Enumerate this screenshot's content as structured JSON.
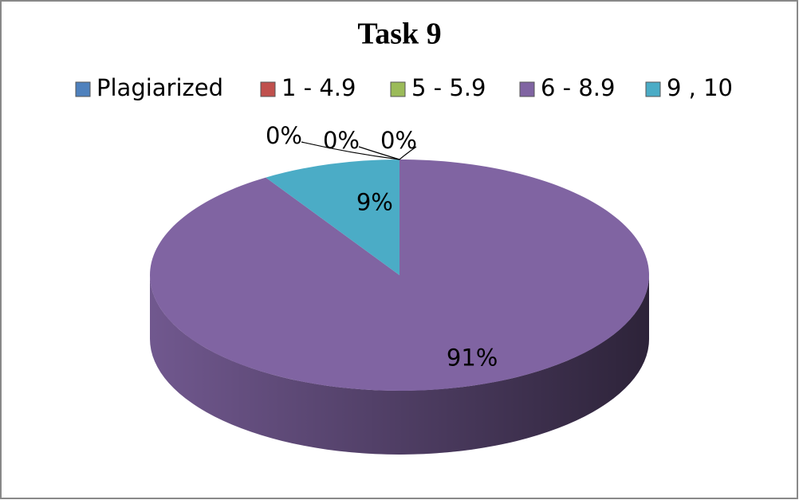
{
  "chart_data": {
    "type": "pie3d",
    "title": "Task 9",
    "categories": [
      "Plagiarized",
      "1 - 4.9",
      "5 - 5.9",
      "6 - 8.9",
      "9 , 10"
    ],
    "values": [
      0,
      0,
      0,
      91,
      9
    ],
    "value_labels": [
      "0%",
      "0%",
      "0%",
      "91%",
      "9%"
    ],
    "colors": [
      "#4f81bd",
      "#c0504d",
      "#9bbb59",
      "#8064a2",
      "#4bacc6"
    ],
    "legend": "top"
  }
}
